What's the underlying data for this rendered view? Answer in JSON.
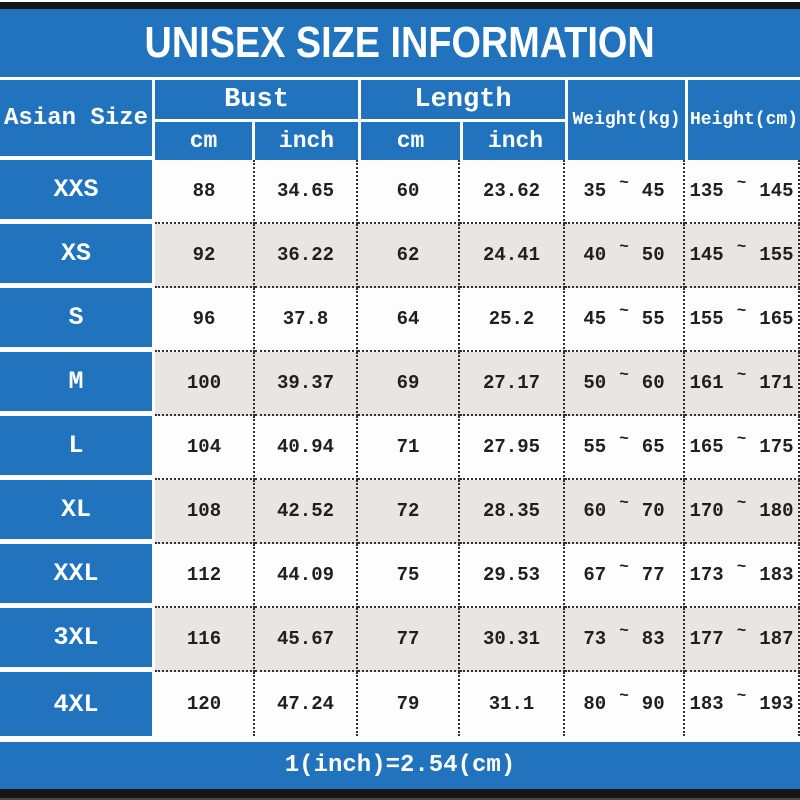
{
  "title": "UNISEX SIZE INFORMATION",
  "footer": {
    "note": "1(inch)=2.54(cm)"
  },
  "colors": {
    "blue": "#2173bd",
    "gray_row": "#e8e6e3",
    "white_row": "#fdfdfd",
    "strip": "#161616",
    "text_dark": "#1f1f1f",
    "text_light": "#ffffff"
  },
  "table": {
    "corner_label": "Asian Size",
    "groups": [
      {
        "label": "Bust",
        "sub": [
          "cm",
          "inch"
        ]
      },
      {
        "label": "Length",
        "sub": [
          "cm",
          "inch"
        ]
      }
    ],
    "weight_label": "Weight(kg)",
    "height_label": "Height(cm)",
    "range_separator": "~",
    "rows": [
      {
        "size": "XXS",
        "bust_cm": "88",
        "bust_inch": "34.65",
        "length_cm": "60",
        "length_inch": "23.62",
        "weight_min": "35",
        "weight_max": "45",
        "height_min": "135",
        "height_max": "145"
      },
      {
        "size": "XS",
        "bust_cm": "92",
        "bust_inch": "36.22",
        "length_cm": "62",
        "length_inch": "24.41",
        "weight_min": "40",
        "weight_max": "50",
        "height_min": "145",
        "height_max": "155"
      },
      {
        "size": "S",
        "bust_cm": "96",
        "bust_inch": "37.8",
        "length_cm": "64",
        "length_inch": "25.2",
        "weight_min": "45",
        "weight_max": "55",
        "height_min": "155",
        "height_max": "165"
      },
      {
        "size": "M",
        "bust_cm": "100",
        "bust_inch": "39.37",
        "length_cm": "69",
        "length_inch": "27.17",
        "weight_min": "50",
        "weight_max": "60",
        "height_min": "161",
        "height_max": "171"
      },
      {
        "size": "L",
        "bust_cm": "104",
        "bust_inch": "40.94",
        "length_cm": "71",
        "length_inch": "27.95",
        "weight_min": "55",
        "weight_max": "65",
        "height_min": "165",
        "height_max": "175"
      },
      {
        "size": "XL",
        "bust_cm": "108",
        "bust_inch": "42.52",
        "length_cm": "72",
        "length_inch": "28.35",
        "weight_min": "60",
        "weight_max": "70",
        "height_min": "170",
        "height_max": "180"
      },
      {
        "size": "XXL",
        "bust_cm": "112",
        "bust_inch": "44.09",
        "length_cm": "75",
        "length_inch": "29.53",
        "weight_min": "67",
        "weight_max": "77",
        "height_min": "173",
        "height_max": "183"
      },
      {
        "size": "3XL",
        "bust_cm": "116",
        "bust_inch": "45.67",
        "length_cm": "77",
        "length_inch": "30.31",
        "weight_min": "73",
        "weight_max": "83",
        "height_min": "177",
        "height_max": "187"
      },
      {
        "size": "4XL",
        "bust_cm": "120",
        "bust_inch": "47.24",
        "length_cm": "79",
        "length_inch": "31.1",
        "weight_min": "80",
        "weight_max": "90",
        "height_min": "183",
        "height_max": "193"
      }
    ]
  },
  "chart_data": {
    "type": "table",
    "title": "UNISEX SIZE INFORMATION",
    "columns": [
      "Asian Size",
      "Bust cm",
      "Bust inch",
      "Length cm",
      "Length inch",
      "Weight(kg)",
      "Height(cm)"
    ],
    "rows": [
      [
        "XXS",
        88,
        34.65,
        60,
        23.62,
        "35~45",
        "135~145"
      ],
      [
        "XS",
        92,
        36.22,
        62,
        24.41,
        "40~50",
        "145~155"
      ],
      [
        "S",
        96,
        37.8,
        64,
        25.2,
        "45~55",
        "155~165"
      ],
      [
        "M",
        100,
        39.37,
        69,
        27.17,
        "50~60",
        "161~171"
      ],
      [
        "L",
        104,
        40.94,
        71,
        27.95,
        "55~65",
        "165~175"
      ],
      [
        "XL",
        108,
        42.52,
        72,
        28.35,
        "60~70",
        "170~180"
      ],
      [
        "XXL",
        112,
        44.09,
        75,
        29.53,
        "67~77",
        "173~183"
      ],
      [
        "3XL",
        116,
        45.67,
        77,
        30.31,
        "73~83",
        "177~187"
      ],
      [
        "4XL",
        120,
        47.24,
        79,
        31.1,
        "80~90",
        "183~193"
      ]
    ],
    "note": "1(inch)=2.54(cm)"
  }
}
